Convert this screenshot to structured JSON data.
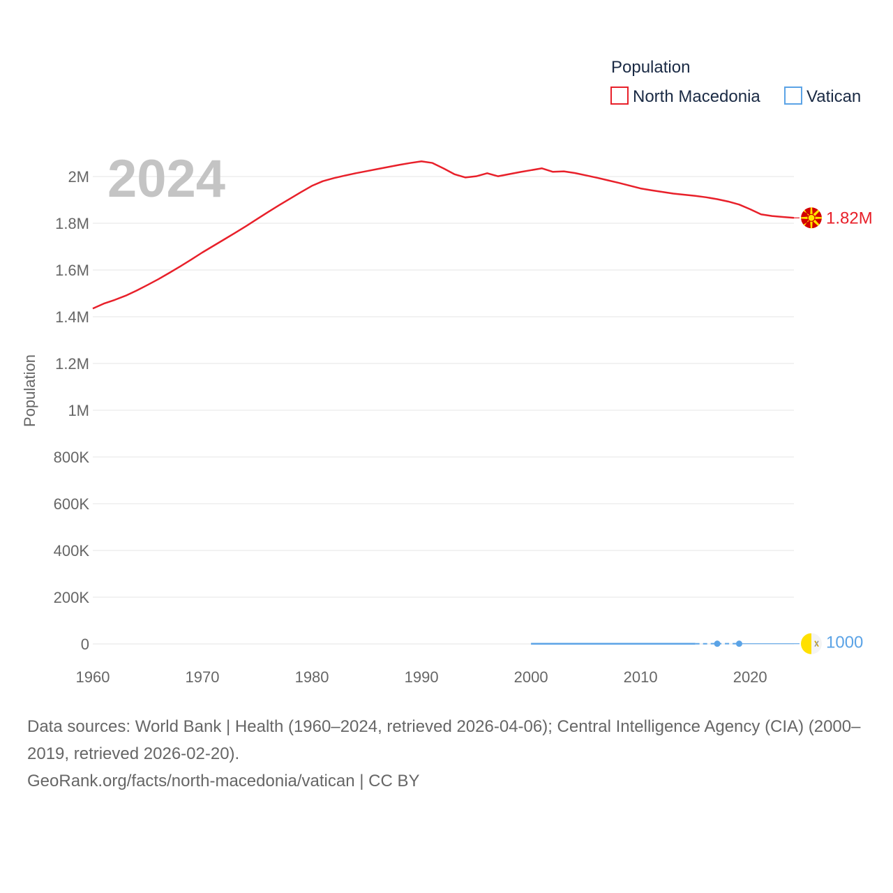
{
  "chart_data": {
    "type": "line",
    "year_label": "2024",
    "ylabel": "Population",
    "xlim": [
      1960,
      2024
    ],
    "ylim": [
      0,
      2000000
    ],
    "x_ticks": [
      1960,
      1970,
      1980,
      1990,
      2000,
      2010,
      2020
    ],
    "x_tick_labels": [
      "1960",
      "1970",
      "1980",
      "1990",
      "2000",
      "2010",
      "2020"
    ],
    "y_ticks": [
      0,
      200000,
      400000,
      600000,
      800000,
      1000000,
      1200000,
      1400000,
      1600000,
      1800000,
      2000000
    ],
    "y_tick_labels": [
      "0",
      "200K",
      "400K",
      "600K",
      "800K",
      "1M",
      "1.2M",
      "1.4M",
      "1.6M",
      "1.8M",
      "2M"
    ],
    "grid": true,
    "legend": {
      "title": "Population",
      "position": "top-right"
    },
    "series": [
      {
        "name": "North Macedonia",
        "color": "#e8202a",
        "end_label": "1.82M",
        "flag_icon": "north-macedonia-flag-icon",
        "x": [
          1960,
          1961,
          1962,
          1963,
          1964,
          1965,
          1966,
          1967,
          1968,
          1969,
          1970,
          1971,
          1972,
          1973,
          1974,
          1975,
          1976,
          1977,
          1978,
          1979,
          1980,
          1981,
          1982,
          1983,
          1984,
          1985,
          1986,
          1987,
          1988,
          1989,
          1990,
          1991,
          1992,
          1993,
          1994,
          1995,
          1996,
          1997,
          1998,
          1999,
          2000,
          2001,
          2002,
          2003,
          2004,
          2005,
          2006,
          2007,
          2008,
          2009,
          2010,
          2011,
          2012,
          2013,
          2014,
          2015,
          2016,
          2017,
          2018,
          2019,
          2020,
          2021,
          2022,
          2023,
          2024
        ],
        "values": [
          1435000,
          1456000,
          1472000,
          1490000,
          1512000,
          1536000,
          1561000,
          1588000,
          1616000,
          1645000,
          1675000,
          1703000,
          1731000,
          1759000,
          1788000,
          1818000,
          1848000,
          1877000,
          1905000,
          1933000,
          1960000,
          1980000,
          1993000,
          2004000,
          2014000,
          2023000,
          2032000,
          2041000,
          2050000,
          2058000,
          2065000,
          2058000,
          2035000,
          2010000,
          1996000,
          2001000,
          2014000,
          2001000,
          2010000,
          2019000,
          2027000,
          2035000,
          2020000,
          2022000,
          2015000,
          2005000,
          1995000,
          1984000,
          1973000,
          1961000,
          1949000,
          1941000,
          1934000,
          1927000,
          1922000,
          1917000,
          1911000,
          1903000,
          1893000,
          1880000,
          1860000,
          1838000,
          1831000,
          1827000,
          1823000
        ]
      },
      {
        "name": "Vatican",
        "color": "#5ba3e6",
        "end_label": "1000",
        "flag_icon": "vatican-flag-icon",
        "x": [
          2000,
          2001,
          2002,
          2003,
          2004,
          2005,
          2006,
          2007,
          2008,
          2009,
          2010,
          2011,
          2012,
          2013,
          2014,
          2015,
          2017,
          2019
        ],
        "values": [
          890,
          890,
          900,
          911,
          921,
          932,
          932,
          821,
          824,
          826,
          829,
          832,
          836,
          836,
          839,
          842,
          1000,
          1000
        ]
      }
    ]
  },
  "footer": {
    "sources": "Data sources: World Bank | Health (1960–2024, retrieved 2026-04-06); Central Intelligence Agency (CIA) (2000–2019, retrieved 2026-02-20).",
    "credit": "GeoRank.org/facts/north-macedonia/vatican | CC BY"
  }
}
